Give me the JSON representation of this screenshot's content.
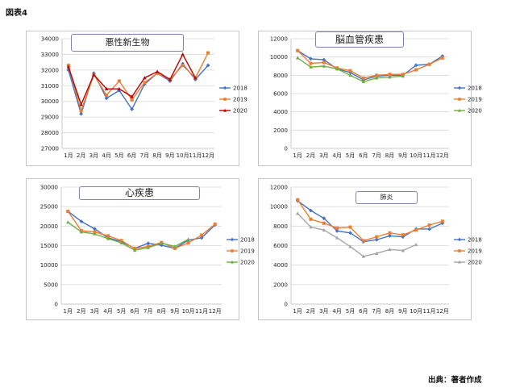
{
  "figure_label": "図表4",
  "source_note": "出典：著者作成",
  "chart_data": [
    {
      "type": "line",
      "title": "悪性新生物",
      "categories": [
        "1月",
        "2月",
        "3月",
        "4月",
        "5月",
        "6月",
        "7月",
        "8月",
        "9月",
        "10月",
        "11月",
        "12月"
      ],
      "ylim": [
        27000,
        34000
      ],
      "yticks": [
        27000,
        28000,
        29000,
        30000,
        31000,
        32000,
        33000,
        34000
      ],
      "legend": "right",
      "grid": true,
      "series": [
        {
          "name": "2018",
          "color": "#4472c4",
          "values": [
            32000,
            29200,
            31800,
            30200,
            30700,
            29500,
            31100,
            31800,
            31300,
            32400,
            31400,
            32300
          ]
        },
        {
          "name": "2019",
          "color": "#ed7d31",
          "values": [
            32300,
            29400,
            31700,
            30400,
            31300,
            30100,
            31200,
            31800,
            31400,
            32300,
            31500,
            33100
          ]
        },
        {
          "name": "2020",
          "color": "#c00000",
          "values": [
            32200,
            29800,
            31700,
            30800,
            30800,
            30300,
            31500,
            31900,
            31400,
            33000,
            31500,
            null
          ]
        }
      ]
    },
    {
      "type": "line",
      "title": "脳血管疾患",
      "categories": [
        "1月",
        "2月",
        "3月",
        "4月",
        "5月",
        "6月",
        "7月",
        "8月",
        "9月",
        "10月",
        "11月",
        "12月"
      ],
      "ylim": [
        0,
        12000
      ],
      "yticks": [
        0,
        2000,
        4000,
        6000,
        8000,
        10000,
        12000
      ],
      "legend": "right",
      "grid": true,
      "series": [
        {
          "name": "2018",
          "color": "#4472c4",
          "values": [
            10700,
            9800,
            9700,
            8700,
            8300,
            7500,
            7900,
            8000,
            8000,
            9100,
            9200,
            10100
          ]
        },
        {
          "name": "2019",
          "color": "#ed7d31",
          "values": [
            10700,
            9300,
            9400,
            8800,
            8500,
            7700,
            8000,
            8100,
            8100,
            8600,
            9200,
            9900
          ]
        },
        {
          "name": "2020",
          "color": "#70ad47",
          "values": [
            9900,
            8900,
            9000,
            8700,
            8000,
            7300,
            7700,
            7800,
            7900,
            null,
            null,
            null
          ]
        }
      ]
    },
    {
      "type": "line",
      "title": "心疾患",
      "categories": [
        "1月",
        "2月",
        "3月",
        "4月",
        "5月",
        "6月",
        "7月",
        "8月",
        "9月",
        "10月",
        "11月",
        "12月"
      ],
      "ylim": [
        0,
        30000
      ],
      "yticks": [
        0,
        5000,
        10000,
        15000,
        20000,
        25000,
        30000
      ],
      "legend": "right",
      "grid": true,
      "series": [
        {
          "name": "2018",
          "color": "#4472c4",
          "values": [
            23800,
            21200,
            19300,
            17000,
            16000,
            14300,
            15600,
            15100,
            14300,
            16400,
            17000,
            20300
          ]
        },
        {
          "name": "2019",
          "color": "#ed7d31",
          "values": [
            23800,
            18800,
            18500,
            17500,
            16300,
            14200,
            14800,
            15800,
            14300,
            15700,
            17700,
            20500
          ]
        },
        {
          "name": "2020",
          "color": "#70ad47",
          "values": [
            21000,
            18500,
            18000,
            16800,
            15700,
            13800,
            14500,
            15600,
            14800,
            16600,
            null,
            null
          ]
        }
      ]
    },
    {
      "type": "line",
      "title": "肺炎",
      "categories": [
        "1月",
        "2月",
        "3月",
        "4月",
        "5月",
        "6月",
        "7月",
        "8月",
        "9月",
        "10月",
        "11月",
        "12月"
      ],
      "ylim": [
        0,
        12000
      ],
      "yticks": [
        0,
        2000,
        4000,
        6000,
        8000,
        10000,
        12000
      ],
      "legend": "right",
      "grid": true,
      "series": [
        {
          "name": "2018",
          "color": "#4472c4",
          "values": [
            10600,
            9600,
            8800,
            7500,
            7300,
            6400,
            6600,
            7000,
            6900,
            7700,
            7700,
            8300
          ]
        },
        {
          "name": "2019",
          "color": "#ed7d31",
          "values": [
            10700,
            8700,
            8300,
            7800,
            7900,
            6500,
            6900,
            7300,
            7100,
            7600,
            8100,
            8500
          ]
        },
        {
          "name": "2020",
          "color": "#a5a5a5",
          "values": [
            9300,
            7900,
            7600,
            6800,
            5900,
            4900,
            5200,
            5600,
            5500,
            6100,
            null,
            null
          ]
        }
      ]
    }
  ]
}
